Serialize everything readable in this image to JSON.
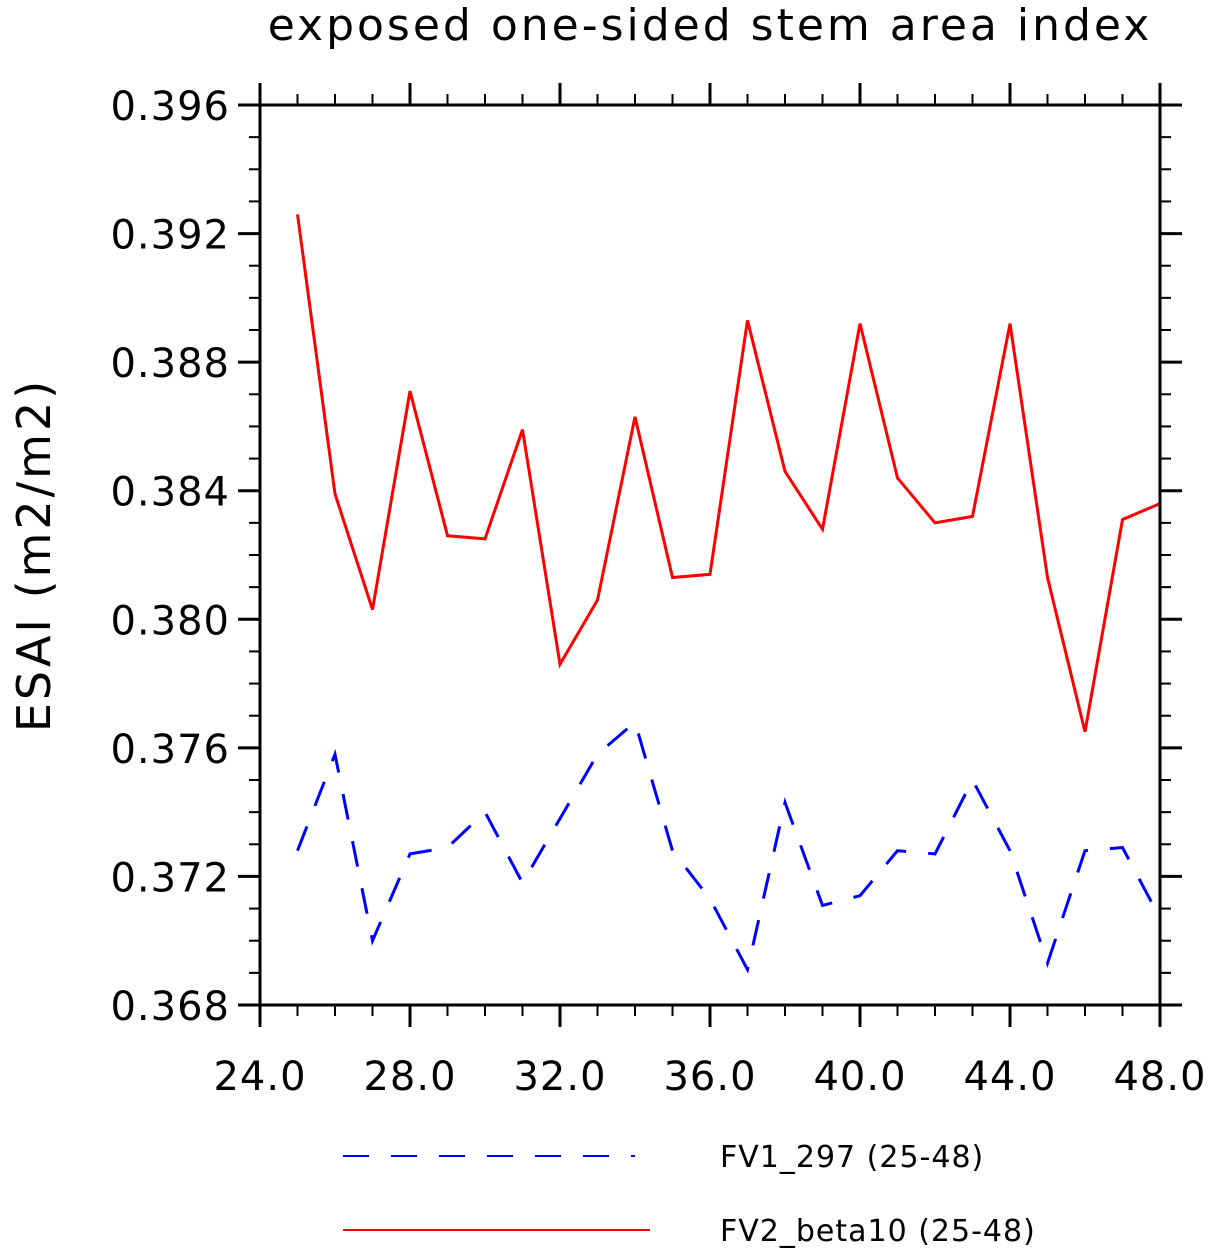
{
  "chart_data": {
    "type": "line",
    "title": "exposed one-sided stem area index",
    "ylabel": "ESAI  (m2/m2)",
    "xlabel": "",
    "xlim": [
      24,
      48
    ],
    "ylim": [
      0.368,
      0.396
    ],
    "x_ticks": [
      24,
      28,
      32,
      36,
      40,
      44,
      48
    ],
    "x_tick_labels": [
      "24.0",
      "28.0",
      "32.0",
      "36.0",
      "40.0",
      "44.0",
      "48.0"
    ],
    "y_ticks": [
      0.368,
      0.372,
      0.376,
      0.38,
      0.384,
      0.388,
      0.392,
      0.396
    ],
    "y_tick_labels": [
      "0.368",
      "0.372",
      "0.376",
      "0.380",
      "0.384",
      "0.388",
      "0.392",
      "0.396"
    ],
    "x_minor_step": 1,
    "y_minor_step": 0.001,
    "grid": false,
    "legend_position": "bottom",
    "series": [
      {
        "name": "FV1_297 (25-48)",
        "color": "#0000ff",
        "style": "dashed",
        "x": [
          25,
          26,
          27,
          28,
          29,
          30,
          31,
          32,
          33,
          34,
          35,
          36,
          37,
          38,
          39,
          40,
          41,
          42,
          43,
          44,
          45,
          46,
          47,
          48
        ],
        "values": [
          0.3728,
          0.3758,
          0.37,
          0.3727,
          0.3729,
          0.374,
          0.3718,
          0.3738,
          0.3758,
          0.3768,
          0.3728,
          0.3713,
          0.3691,
          0.3743,
          0.3711,
          0.3714,
          0.3728,
          0.3727,
          0.375,
          0.3728,
          0.3693,
          0.3728,
          0.3729,
          0.3707
        ]
      },
      {
        "name": "FV2_beta10 (25-48)",
        "color": "#ff0000",
        "style": "solid",
        "x": [
          25,
          26,
          27,
          28,
          29,
          30,
          31,
          32,
          33,
          34,
          35,
          36,
          37,
          38,
          39,
          40,
          41,
          42,
          43,
          44,
          45,
          46,
          47,
          48
        ],
        "values": [
          0.3926,
          0.3839,
          0.3803,
          0.3871,
          0.3826,
          0.3825,
          0.3859,
          0.3786,
          0.3806,
          0.3863,
          0.3813,
          0.3814,
          0.3893,
          0.3846,
          0.3828,
          0.3892,
          0.3844,
          0.383,
          0.3832,
          0.3892,
          0.3813,
          0.3765,
          0.3831,
          0.3836
        ]
      }
    ]
  }
}
